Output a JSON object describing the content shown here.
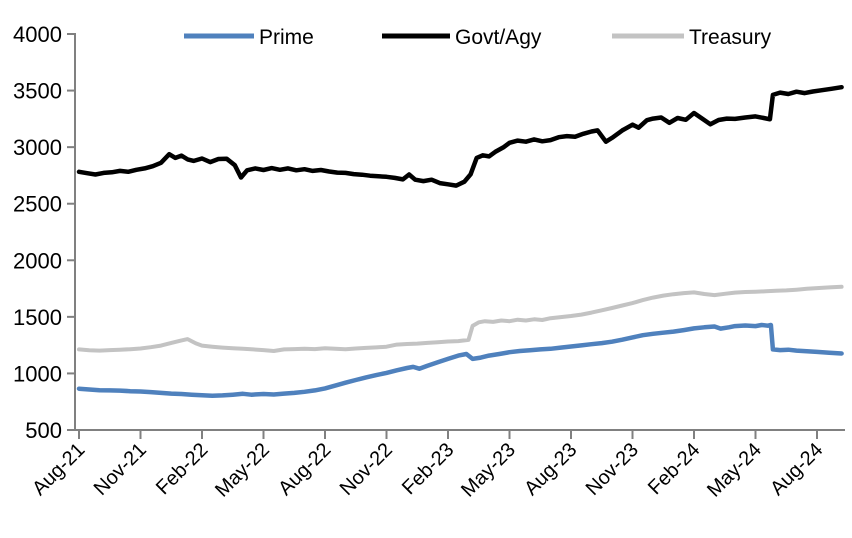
{
  "chart_data": {
    "type": "line",
    "title": "",
    "xlabel": "",
    "ylabel": "",
    "grid": false,
    "legend_position": "top",
    "axis_color": "#808080",
    "ylim": [
      500,
      4000
    ],
    "y_ticks": [
      "500",
      "1000",
      "1500",
      "2000",
      "2500",
      "3000",
      "3500",
      "4000"
    ],
    "x_tick_labels": [
      "Aug-21",
      "Nov-21",
      "Feb-22",
      "May-22",
      "Aug-22",
      "Nov-22",
      "Feb-23",
      "May-23",
      "Aug-23",
      "Nov-23",
      "Feb-24",
      "May-24",
      "Aug-24"
    ],
    "x_tick_months": [
      0,
      3,
      6,
      9,
      12,
      15,
      18,
      21,
      24,
      27,
      30,
      33,
      36
    ],
    "x_unit": "months since Aug-2021, data ends ~Sep-2024",
    "series": [
      {
        "name": "Prime",
        "color": "#4f81bd",
        "points": [
          [
            0,
            865
          ],
          [
            0.5,
            858
          ],
          [
            1,
            852
          ],
          [
            1.5,
            850
          ],
          [
            2,
            848
          ],
          [
            2.5,
            843
          ],
          [
            3,
            840
          ],
          [
            3.5,
            835
          ],
          [
            4,
            828
          ],
          [
            4.5,
            822
          ],
          [
            5,
            818
          ],
          [
            5.5,
            812
          ],
          [
            6,
            808
          ],
          [
            6.5,
            803
          ],
          [
            7,
            806
          ],
          [
            7.5,
            812
          ],
          [
            8,
            820
          ],
          [
            8.4,
            812
          ],
          [
            9,
            818
          ],
          [
            9.5,
            814
          ],
          [
            10,
            822
          ],
          [
            10.5,
            828
          ],
          [
            11,
            838
          ],
          [
            11.5,
            850
          ],
          [
            12,
            868
          ],
          [
            12.5,
            892
          ],
          [
            13,
            918
          ],
          [
            13.5,
            942
          ],
          [
            14,
            965
          ],
          [
            14.5,
            985
          ],
          [
            15,
            1005
          ],
          [
            15.5,
            1028
          ],
          [
            16,
            1048
          ],
          [
            16.3,
            1058
          ],
          [
            16.6,
            1042
          ],
          [
            17,
            1068
          ],
          [
            17.5,
            1098
          ],
          [
            18,
            1128
          ],
          [
            18.5,
            1158
          ],
          [
            18.9,
            1172
          ],
          [
            19.2,
            1128
          ],
          [
            19.6,
            1140
          ],
          [
            20,
            1158
          ],
          [
            20.5,
            1172
          ],
          [
            21,
            1188
          ],
          [
            21.5,
            1198
          ],
          [
            22,
            1205
          ],
          [
            22.5,
            1212
          ],
          [
            23,
            1218
          ],
          [
            23.5,
            1228
          ],
          [
            24,
            1238
          ],
          [
            24.5,
            1248
          ],
          [
            25,
            1258
          ],
          [
            25.5,
            1268
          ],
          [
            26,
            1280
          ],
          [
            26.5,
            1298
          ],
          [
            27,
            1318
          ],
          [
            27.5,
            1338
          ],
          [
            28,
            1350
          ],
          [
            28.5,
            1360
          ],
          [
            29,
            1370
          ],
          [
            29.5,
            1383
          ],
          [
            30,
            1398
          ],
          [
            30.5,
            1408
          ],
          [
            31,
            1415
          ],
          [
            31.3,
            1396
          ],
          [
            31.7,
            1408
          ],
          [
            32,
            1418
          ],
          [
            32.5,
            1424
          ],
          [
            33,
            1418
          ],
          [
            33.3,
            1428
          ],
          [
            33.6,
            1422
          ],
          [
            33.75,
            1428
          ],
          [
            33.85,
            1212
          ],
          [
            34.2,
            1206
          ],
          [
            34.6,
            1210
          ],
          [
            35,
            1202
          ],
          [
            35.5,
            1196
          ],
          [
            36,
            1190
          ],
          [
            36.6,
            1182
          ],
          [
            37.2,
            1176
          ]
        ]
      },
      {
        "name": "Govt/Agy",
        "color": "#000000",
        "points": [
          [
            0,
            2782
          ],
          [
            0.4,
            2770
          ],
          [
            0.8,
            2758
          ],
          [
            1.2,
            2772
          ],
          [
            1.6,
            2778
          ],
          [
            2,
            2790
          ],
          [
            2.4,
            2782
          ],
          [
            2.8,
            2800
          ],
          [
            3.2,
            2812
          ],
          [
            3.6,
            2832
          ],
          [
            4,
            2862
          ],
          [
            4.4,
            2938
          ],
          [
            4.7,
            2905
          ],
          [
            5,
            2925
          ],
          [
            5.3,
            2892
          ],
          [
            5.6,
            2878
          ],
          [
            6,
            2900
          ],
          [
            6.4,
            2868
          ],
          [
            6.8,
            2895
          ],
          [
            7.2,
            2898
          ],
          [
            7.6,
            2840
          ],
          [
            7.9,
            2732
          ],
          [
            8.2,
            2795
          ],
          [
            8.6,
            2812
          ],
          [
            9,
            2798
          ],
          [
            9.4,
            2815
          ],
          [
            9.8,
            2800
          ],
          [
            10.2,
            2812
          ],
          [
            10.6,
            2795
          ],
          [
            11,
            2805
          ],
          [
            11.4,
            2790
          ],
          [
            11.8,
            2798
          ],
          [
            12.2,
            2785
          ],
          [
            12.6,
            2775
          ],
          [
            13,
            2772
          ],
          [
            13.4,
            2762
          ],
          [
            13.8,
            2756
          ],
          [
            14.2,
            2748
          ],
          [
            14.6,
            2742
          ],
          [
            15,
            2738
          ],
          [
            15.4,
            2728
          ],
          [
            15.8,
            2715
          ],
          [
            16.1,
            2758
          ],
          [
            16.4,
            2712
          ],
          [
            16.8,
            2700
          ],
          [
            17.2,
            2712
          ],
          [
            17.6,
            2682
          ],
          [
            18,
            2672
          ],
          [
            18.4,
            2660
          ],
          [
            18.8,
            2695
          ],
          [
            19.1,
            2760
          ],
          [
            19.4,
            2905
          ],
          [
            19.7,
            2928
          ],
          [
            20,
            2918
          ],
          [
            20.3,
            2958
          ],
          [
            20.7,
            2998
          ],
          [
            21,
            3038
          ],
          [
            21.4,
            3058
          ],
          [
            21.8,
            3048
          ],
          [
            22.2,
            3068
          ],
          [
            22.6,
            3052
          ],
          [
            23,
            3062
          ],
          [
            23.4,
            3088
          ],
          [
            23.8,
            3098
          ],
          [
            24.2,
            3092
          ],
          [
            24.6,
            3118
          ],
          [
            25,
            3138
          ],
          [
            25.3,
            3148
          ],
          [
            25.7,
            3048
          ],
          [
            26,
            3082
          ],
          [
            26.5,
            3148
          ],
          [
            27,
            3198
          ],
          [
            27.3,
            3172
          ],
          [
            27.7,
            3238
          ],
          [
            28,
            3252
          ],
          [
            28.4,
            3262
          ],
          [
            28.8,
            3215
          ],
          [
            29.2,
            3258
          ],
          [
            29.6,
            3242
          ],
          [
            30,
            3302
          ],
          [
            30.4,
            3252
          ],
          [
            30.8,
            3202
          ],
          [
            31.2,
            3240
          ],
          [
            31.6,
            3252
          ],
          [
            32,
            3250
          ],
          [
            32.5,
            3262
          ],
          [
            33,
            3272
          ],
          [
            33.4,
            3258
          ],
          [
            33.7,
            3246
          ],
          [
            33.85,
            3462
          ],
          [
            34.2,
            3482
          ],
          [
            34.6,
            3470
          ],
          [
            35,
            3490
          ],
          [
            35.4,
            3478
          ],
          [
            35.8,
            3492
          ],
          [
            36.2,
            3502
          ],
          [
            36.7,
            3516
          ],
          [
            37.2,
            3530
          ]
        ]
      },
      {
        "name": "Treasury",
        "color": "#c3c3c3",
        "points": [
          [
            0,
            1212
          ],
          [
            0.5,
            1205
          ],
          [
            1,
            1202
          ],
          [
            1.5,
            1206
          ],
          [
            2,
            1210
          ],
          [
            2.5,
            1214
          ],
          [
            3,
            1220
          ],
          [
            3.5,
            1232
          ],
          [
            4,
            1246
          ],
          [
            4.5,
            1270
          ],
          [
            5,
            1292
          ],
          [
            5.3,
            1303
          ],
          [
            5.7,
            1265
          ],
          [
            6,
            1246
          ],
          [
            6.5,
            1236
          ],
          [
            7,
            1228
          ],
          [
            7.5,
            1222
          ],
          [
            8,
            1218
          ],
          [
            8.5,
            1212
          ],
          [
            9,
            1206
          ],
          [
            9.5,
            1198
          ],
          [
            10,
            1212
          ],
          [
            10.5,
            1215
          ],
          [
            11,
            1218
          ],
          [
            11.5,
            1215
          ],
          [
            12,
            1222
          ],
          [
            12.5,
            1218
          ],
          [
            13,
            1214
          ],
          [
            13.5,
            1220
          ],
          [
            14,
            1226
          ],
          [
            14.5,
            1230
          ],
          [
            15,
            1236
          ],
          [
            15.5,
            1255
          ],
          [
            16,
            1260
          ],
          [
            16.5,
            1264
          ],
          [
            17,
            1270
          ],
          [
            17.5,
            1275
          ],
          [
            18,
            1282
          ],
          [
            18.5,
            1286
          ],
          [
            19,
            1296
          ],
          [
            19.2,
            1420
          ],
          [
            19.5,
            1452
          ],
          [
            19.8,
            1462
          ],
          [
            20.2,
            1455
          ],
          [
            20.6,
            1468
          ],
          [
            21,
            1462
          ],
          [
            21.4,
            1475
          ],
          [
            21.8,
            1468
          ],
          [
            22.2,
            1478
          ],
          [
            22.6,
            1472
          ],
          [
            23,
            1488
          ],
          [
            23.5,
            1498
          ],
          [
            24,
            1508
          ],
          [
            24.5,
            1520
          ],
          [
            25,
            1538
          ],
          [
            25.5,
            1558
          ],
          [
            26,
            1578
          ],
          [
            26.5,
            1600
          ],
          [
            27,
            1622
          ],
          [
            27.5,
            1648
          ],
          [
            28,
            1670
          ],
          [
            28.5,
            1688
          ],
          [
            29,
            1700
          ],
          [
            29.5,
            1710
          ],
          [
            30,
            1716
          ],
          [
            30.5,
            1702
          ],
          [
            31,
            1692
          ],
          [
            31.5,
            1704
          ],
          [
            32,
            1714
          ],
          [
            32.5,
            1720
          ],
          [
            33,
            1722
          ],
          [
            33.5,
            1726
          ],
          [
            34,
            1730
          ],
          [
            34.5,
            1734
          ],
          [
            35,
            1740
          ],
          [
            35.5,
            1748
          ],
          [
            36,
            1754
          ],
          [
            36.6,
            1760
          ],
          [
            37.2,
            1766
          ]
        ]
      }
    ]
  },
  "legend": {
    "items": [
      "Prime",
      "Govt/Agy",
      "Treasury"
    ]
  }
}
